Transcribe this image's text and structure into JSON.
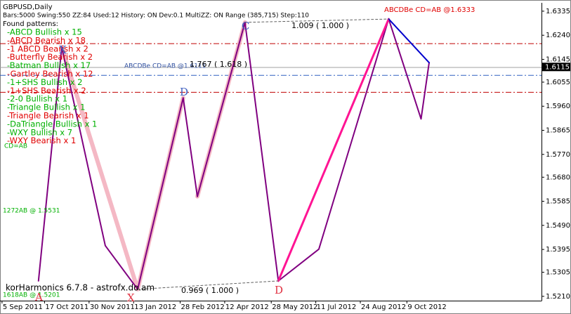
{
  "chart_data": {
    "type": "line",
    "title": "GBPUSD,Daily",
    "subtitle": "Bars:5000  Swing:550  ZZ:84  Used:12  History: ON Dev:0.1  MultiZZ: ON  Range (385,715)  Step:110",
    "patterns_title": "Found patterns:",
    "patterns": [
      {
        "text": "-ABCD Bullish x 15",
        "color": "#00b000"
      },
      {
        "text": "-ABCD Bearish x 18",
        "color": "#e00000"
      },
      {
        "text": "-1 ABCD Bearish x 2",
        "color": "#e00000"
      },
      {
        "text": "-Butterfly Bearish x 2",
        "color": "#e00000"
      },
      {
        "text": "-Batman Bullish x 17",
        "color": "#00b000"
      },
      {
        "text": "-Gartley Bearish x 12",
        "color": "#e00000"
      },
      {
        "text": "-1+SHS Bullish x 2",
        "color": "#00b000"
      },
      {
        "text": "-1+SHS Bearish x 2",
        "color": "#e00000"
      },
      {
        "text": "-2-0 Bullish x 1",
        "color": "#00b000"
      },
      {
        "text": "-Triangle Bullish x 1",
        "color": "#00b000"
      },
      {
        "text": "-Triangle Bearish x 1",
        "color": "#e00000"
      },
      {
        "text": "-DaTriangle Bullish x 1",
        "color": "#00b000"
      },
      {
        "text": "-WXY Bullish x 7",
        "color": "#00b000"
      },
      {
        "text": "-WXY Bearish x 1",
        "color": "#e00000"
      }
    ],
    "annotations": [
      {
        "text": "ABCDBe CD=AB   @1.6333",
        "color": "#e00000"
      },
      {
        "text": "ABCDBe CD=AB   @1.6111",
        "color": "#3050a0"
      },
      {
        "text": "1.009 ( 1.000 )",
        "color": "#000000"
      },
      {
        "text": "1.767 ( 1.618 )",
        "color": "#000000"
      },
      {
        "text": "0.969 ( 1.000 )",
        "color": "#000000"
      },
      {
        "text": "1272AB  @ 1.5531",
        "color": "#00b000"
      },
      {
        "text": "1618AB  @ 1.5201",
        "color": "#00b000"
      },
      {
        "text": "CD=AB",
        "color": "#00b000"
      },
      {
        "text": "D",
        "color": "#4060c0"
      },
      {
        "text": "C",
        "color": "#4060c0"
      },
      {
        "text": "D",
        "color": "#e03040"
      },
      {
        "text": "X",
        "color": "#4060c0"
      },
      {
        "text": "A",
        "color": "#e03040"
      },
      {
        "text": "X",
        "color": "#e03040"
      },
      {
        "text": "korHarmonics 6.7.8 - astrofx.do.am",
        "color": "#000000"
      }
    ],
    "current_price": {
      "value": 1.6115,
      "label": "1.6115"
    },
    "levels": [
      {
        "value": 1.6207,
        "color": "#c00000",
        "dash": "8 3 2 3"
      },
      {
        "value": 1.6113,
        "color": "#a0a0a0",
        "dash": "none"
      },
      {
        "value": 1.6082,
        "color": "#3060c0",
        "dash": "8 3 2 3"
      },
      {
        "value": 1.6015,
        "color": "#c00000",
        "dash": "8 3 2 3"
      }
    ],
    "series": [
      {
        "color": "#f4b8c4",
        "width": 6,
        "dash": "none",
        "x": [
          "2011-11-03",
          "2012-01-17",
          "2012-03-02",
          "2012-03-09",
          "2012-03-16",
          "2012-05-02"
        ],
        "values": [
          1.6193,
          1.5238,
          1.5993,
          null,
          1.5604,
          1.6291
        ]
      },
      {
        "color": "#800080",
        "width": 2,
        "dash": "none",
        "x": [
          "2011-10-11",
          "2011-11-03",
          "2011-12-16",
          "2012-01-17",
          "2012-03-02",
          "2012-03-16",
          "2012-05-02",
          "2012-06-04",
          "2012-07-14",
          "2012-09-21",
          "2012-10-23",
          "2012-10-31"
        ],
        "values": [
          1.5271,
          1.6193,
          1.541,
          1.5238,
          1.5993,
          1.5604,
          1.6291,
          1.5271,
          1.5396,
          1.6304,
          1.591,
          1.6132
        ]
      },
      {
        "color": "#ff1493",
        "width": 3,
        "dash": "none",
        "x": [
          "2012-06-04",
          "2012-09-21"
        ],
        "values": [
          1.5271,
          1.6304
        ]
      },
      {
        "color": "#0000cd",
        "width": 2,
        "dash": "none",
        "x": [
          "2012-09-21",
          "2012-10-31"
        ],
        "values": [
          1.6304,
          1.6132
        ]
      },
      {
        "color": "#606060",
        "width": 1,
        "dash": "3 3",
        "x": [
          "2012-01-17",
          "2012-06-04"
        ],
        "values": [
          1.5238,
          1.5271
        ]
      },
      {
        "color": "#606060",
        "width": 1,
        "dash": "3 3",
        "x": [
          "2012-05-02",
          "2012-09-21"
        ],
        "values": [
          1.6291,
          1.6304
        ]
      }
    ],
    "xlim": [
      "2011-09-03",
      "2013-02-19"
    ],
    "xticks": [
      {
        "value": "2011-09-05",
        "label": "5 Sep 2011"
      },
      {
        "value": "2011-10-17",
        "label": "17 Oct 2011"
      },
      {
        "value": "2011-11-30",
        "label": "30 Nov 2011"
      },
      {
        "value": "2012-01-13",
        "label": "13 Jan 2012"
      },
      {
        "value": "2012-02-28",
        "label": "28 Feb 2012"
      },
      {
        "value": "2012-04-12",
        "label": "12 Apr 2012"
      },
      {
        "value": "2012-05-28",
        "label": "28 May 2012"
      },
      {
        "value": "2012-07-11",
        "label": "11 Jul 2012"
      },
      {
        "value": "2012-08-24",
        "label": "24 Aug 2012"
      },
      {
        "value": "2012-10-09",
        "label": "9 Oct 2012"
      }
    ],
    "ylim": [
      1.5193,
      1.6368
    ],
    "yticks": [
      1.6335,
      {
        "value": 1.624,
        "label": "1.6240"
      },
      1.6145,
      1.6055,
      {
        "value": 1.596,
        "label": "1.5960"
      },
      1.5865,
      {
        "value": 1.577,
        "label": "1.5770"
      },
      {
        "value": 1.568,
        "label": "1.5680"
      },
      1.5585,
      {
        "value": 1.549,
        "label": "1.5490"
      },
      1.5395,
      1.5305,
      {
        "value": 1.521,
        "label": "1.5210"
      }
    ]
  }
}
